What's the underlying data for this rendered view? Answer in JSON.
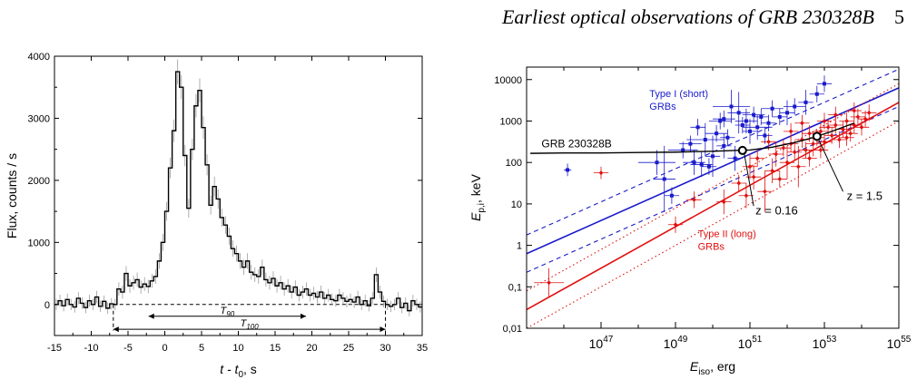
{
  "header": {
    "running_title": "Earliest optical observations of GRB 230328B",
    "page_number": "5"
  },
  "charts": [
    {
      "type": "line",
      "xlabel_main": "t - t",
      "xlabel_sub": "0",
      "xlabel_unit": ", s",
      "ylabel": "Flux, counts / s",
      "xlim": [
        -15,
        35
      ],
      "ylim": [
        -500,
        4000
      ],
      "xticks": [
        "-15",
        "-10",
        "-5",
        "0",
        "5",
        "10",
        "15",
        "20",
        "25",
        "30",
        "35"
      ],
      "yticks": [
        "0",
        "1000",
        "2000",
        "3000",
        "4000"
      ],
      "annotations": {
        "t90": "T",
        "t90_sub": "90",
        "t100": "T",
        "t100_sub": "100"
      },
      "t90_range": [
        -2.2,
        19.2
      ],
      "t100_range": [
        -7,
        30
      ],
      "series": [
        {
          "x": [
            -15,
            -14.5,
            -14,
            -13.5,
            -13,
            -12.5,
            -12,
            -11.5,
            -11,
            -10.5,
            -10,
            -9.5,
            -9,
            -8.5,
            -8,
            -7.5,
            -7,
            -6.5,
            -6,
            -5.5,
            -5,
            -4.5,
            -4,
            -3.5,
            -3,
            -2.5,
            -2,
            -1.5,
            -1,
            -0.5,
            0,
            0.5,
            1,
            1.5,
            2,
            2.5,
            3,
            3.5,
            4,
            4.5,
            5,
            5.5,
            6,
            6.5,
            7,
            7.5,
            8,
            8.5,
            9,
            9.5,
            10,
            10.5,
            11,
            11.5,
            12,
            12.5,
            13,
            13.5,
            14,
            14.5,
            15,
            15.5,
            16,
            16.5,
            17,
            17.5,
            18,
            18.5,
            19,
            19.5,
            20,
            20.5,
            21,
            21.5,
            22,
            22.5,
            23,
            23.5,
            24,
            24.5,
            25,
            25.5,
            26,
            26.5,
            27,
            27.5,
            28,
            28.5,
            29,
            29.5,
            30,
            30.5,
            31,
            31.5,
            32,
            32.5,
            33,
            33.5,
            34,
            34.5
          ],
          "y": [
            0,
            60,
            -20,
            80,
            0,
            -40,
            100,
            20,
            -50,
            60,
            0,
            120,
            -30,
            50,
            -60,
            10,
            0,
            250,
            200,
            500,
            300,
            350,
            400,
            280,
            330,
            290,
            380,
            450,
            700,
            1000,
            1500,
            2200,
            2800,
            3750,
            3500,
            2400,
            1550,
            2500,
            3200,
            3450,
            2850,
            2250,
            1600,
            1900,
            1700,
            1400,
            1280,
            1100,
            900,
            820,
            700,
            600,
            700,
            520,
            480,
            450,
            600,
            400,
            350,
            420,
            300,
            350,
            250,
            300,
            200,
            280,
            150,
            200,
            250,
            150,
            180,
            120,
            200,
            100,
            150,
            80,
            60,
            150,
            100,
            50,
            80,
            40,
            120,
            0,
            60,
            -20,
            100,
            480,
            200,
            50,
            0,
            -30,
            0,
            100,
            -50,
            20,
            -100,
            60,
            0,
            -40
          ]
        }
      ]
    },
    {
      "type": "scatter",
      "xlabel_main": "E",
      "xlabel_sub": "iso",
      "xlabel_unit": ", erg",
      "ylabel_main": "E",
      "ylabel_sub": "p,i",
      "ylabel_unit": ", keV",
      "log_scale": true,
      "xlim": [
        1e+45,
        1e+55
      ],
      "ylim": [
        0.01,
        20000
      ],
      "xticks": [
        {
          "base": "10",
          "exp": "47"
        },
        {
          "base": "10",
          "exp": "49"
        },
        {
          "base": "10",
          "exp": "51"
        },
        {
          "base": "10",
          "exp": "53"
        },
        {
          "base": "10",
          "exp": "55"
        }
      ],
      "yticks": [
        "0,01",
        "0,1",
        "1",
        "10",
        "100",
        "1000",
        "10000"
      ],
      "labels": {
        "type1": [
          "Type I (short)",
          "GRBs"
        ],
        "type2": [
          "Type II (long)",
          "GRBs"
        ],
        "grb": "GRB 230328B",
        "z016": "z = 0.16",
        "z15": "z = 1.5"
      },
      "colors": {
        "type1": "#1a1acc",
        "type2": "#e01010",
        "track": "#000000"
      },
      "fit_lines": {
        "type1": {
          "pivot_log_e": 51,
          "pivot_log_ep": 2.2,
          "slope": 0.4,
          "sigma_dex": 0.45,
          "style": "dashed"
        },
        "type2": {
          "pivot_log_e": 51,
          "pivot_log_ep": 1.45,
          "slope": 0.5,
          "sigma_dex": 0.45,
          "style": "dotted"
        }
      },
      "grb_track": {
        "log_e": [
          45.1,
          46.0,
          47.0,
          48.0,
          49.0,
          50.0,
          50.6,
          51.0,
          51.6,
          52.2,
          52.7,
          53.2,
          53.8
        ],
        "log_ep": [
          2.22,
          2.23,
          2.23,
          2.24,
          2.25,
          2.27,
          2.29,
          2.3,
          2.37,
          2.48,
          2.6,
          2.75,
          2.95
        ]
      },
      "grb_points": [
        {
          "label_key": "z016",
          "log_e": 50.8,
          "log_ep": 2.29
        },
        {
          "label_key": "z15",
          "log_e": 52.8,
          "log_ep": 2.63
        }
      ],
      "type1_points": [
        [
          46.1,
          1.82,
          0.1,
          0.15
        ],
        [
          48.5,
          2.0,
          0.5,
          0.3
        ],
        [
          48.7,
          1.6,
          0.3,
          0.8
        ],
        [
          48.9,
          1.2,
          0.2,
          0.2
        ],
        [
          49.2,
          2.3,
          0.4,
          0.2
        ],
        [
          49.5,
          2.0,
          0.3,
          0.3
        ],
        [
          49.6,
          2.85,
          0.2,
          0.2
        ],
        [
          49.7,
          1.95,
          0.3,
          0.3
        ],
        [
          49.8,
          2.55,
          0.5,
          0.4
        ],
        [
          50.0,
          2.15,
          0.2,
          0.5
        ],
        [
          50.1,
          2.7,
          0.3,
          0.2
        ],
        [
          50.2,
          3.0,
          0.3,
          0.2
        ],
        [
          50.3,
          2.4,
          0.2,
          0.3
        ],
        [
          50.4,
          2.6,
          0.2,
          0.2
        ],
        [
          50.5,
          3.35,
          0.5,
          0.4
        ],
        [
          50.6,
          2.1,
          0.2,
          0.3
        ],
        [
          50.7,
          3.2,
          0.3,
          0.5
        ],
        [
          50.8,
          2.9,
          0.2,
          0.2
        ],
        [
          50.9,
          3.0,
          0.3,
          0.3
        ],
        [
          51.0,
          2.75,
          0.2,
          0.3
        ],
        [
          51.1,
          3.15,
          0.3,
          0.2
        ],
        [
          51.2,
          2.85,
          0.4,
          0.3
        ],
        [
          51.3,
          3.1,
          0.2,
          0.2
        ],
        [
          51.5,
          2.95,
          0.2,
          0.2
        ],
        [
          51.6,
          3.3,
          0.3,
          0.2
        ],
        [
          51.8,
          3.1,
          0.2,
          0.2
        ],
        [
          52.0,
          3.2,
          0.2,
          0.3
        ],
        [
          52.2,
          3.35,
          0.3,
          0.2
        ],
        [
          52.5,
          3.45,
          0.2,
          0.3
        ],
        [
          52.8,
          3.65,
          0.2,
          0.2
        ],
        [
          53.0,
          3.9,
          0.2,
          0.2
        ],
        [
          49.9,
          1.9,
          0.2,
          0.2
        ],
        [
          50.3,
          3.05,
          0.3,
          0.2
        ],
        [
          49.4,
          2.45,
          0.3,
          0.2
        ],
        [
          51.4,
          2.65,
          0.2,
          0.2
        ]
      ],
      "type2_points": [
        [
          45.6,
          -0.9,
          0.4,
          0.35
        ],
        [
          47.0,
          1.75,
          0.2,
          0.15
        ],
        [
          49.0,
          0.5,
          0.2,
          0.2
        ],
        [
          49.5,
          1.1,
          0.2,
          0.2
        ],
        [
          50.3,
          1.05,
          0.2,
          0.3
        ],
        [
          50.7,
          1.5,
          0.2,
          0.2
        ],
        [
          51.0,
          1.9,
          0.2,
          0.3
        ],
        [
          51.2,
          2.1,
          0.2,
          0.2
        ],
        [
          51.4,
          1.3,
          0.2,
          0.5
        ],
        [
          51.6,
          1.8,
          0.2,
          0.3
        ],
        [
          51.7,
          2.2,
          0.2,
          0.3
        ],
        [
          51.8,
          1.6,
          0.2,
          0.2
        ],
        [
          51.9,
          2.35,
          0.2,
          0.2
        ],
        [
          52.0,
          2.0,
          0.2,
          0.4
        ],
        [
          52.1,
          2.45,
          0.2,
          0.2
        ],
        [
          52.2,
          2.25,
          0.2,
          0.2
        ],
        [
          52.3,
          1.9,
          0.2,
          0.5
        ],
        [
          52.4,
          2.55,
          0.2,
          0.2
        ],
        [
          52.5,
          2.3,
          0.2,
          0.2
        ],
        [
          52.6,
          2.7,
          0.2,
          0.2
        ],
        [
          52.7,
          2.45,
          0.2,
          0.3
        ],
        [
          52.8,
          2.6,
          0.2,
          0.2
        ],
        [
          52.9,
          2.75,
          0.2,
          0.2
        ],
        [
          53.0,
          2.5,
          0.2,
          0.2
        ],
        [
          53.1,
          2.85,
          0.2,
          0.2
        ],
        [
          53.2,
          2.65,
          0.2,
          0.2
        ],
        [
          53.3,
          2.9,
          0.2,
          0.2
        ],
        [
          53.4,
          2.55,
          0.2,
          0.2
        ],
        [
          53.5,
          2.8,
          0.2,
          0.2
        ],
        [
          53.6,
          3.0,
          0.2,
          0.2
        ],
        [
          53.7,
          2.7,
          0.2,
          0.2
        ],
        [
          53.8,
          2.9,
          0.2,
          0.2
        ],
        [
          53.9,
          3.1,
          0.2,
          0.2
        ],
        [
          54.0,
          2.85,
          0.2,
          0.2
        ],
        [
          54.1,
          3.05,
          0.2,
          0.2
        ],
        [
          54.2,
          3.2,
          0.2,
          0.2
        ],
        [
          52.4,
          2.95,
          0.2,
          0.2
        ],
        [
          53.3,
          3.15,
          0.2,
          0.2
        ],
        [
          52.9,
          2.3,
          0.2,
          0.2
        ],
        [
          53.6,
          2.6,
          0.2,
          0.2
        ],
        [
          51.5,
          2.5,
          0.2,
          0.2
        ],
        [
          52.1,
          2.75,
          0.2,
          0.2
        ],
        [
          53.0,
          3.0,
          0.2,
          0.2
        ],
        [
          50.9,
          1.2,
          0.2,
          0.3
        ],
        [
          53.8,
          3.25,
          0.2,
          0.2
        ],
        [
          52.6,
          2.1,
          0.2,
          0.2
        ],
        [
          51.1,
          1.65,
          0.2,
          0.3
        ]
      ]
    }
  ]
}
